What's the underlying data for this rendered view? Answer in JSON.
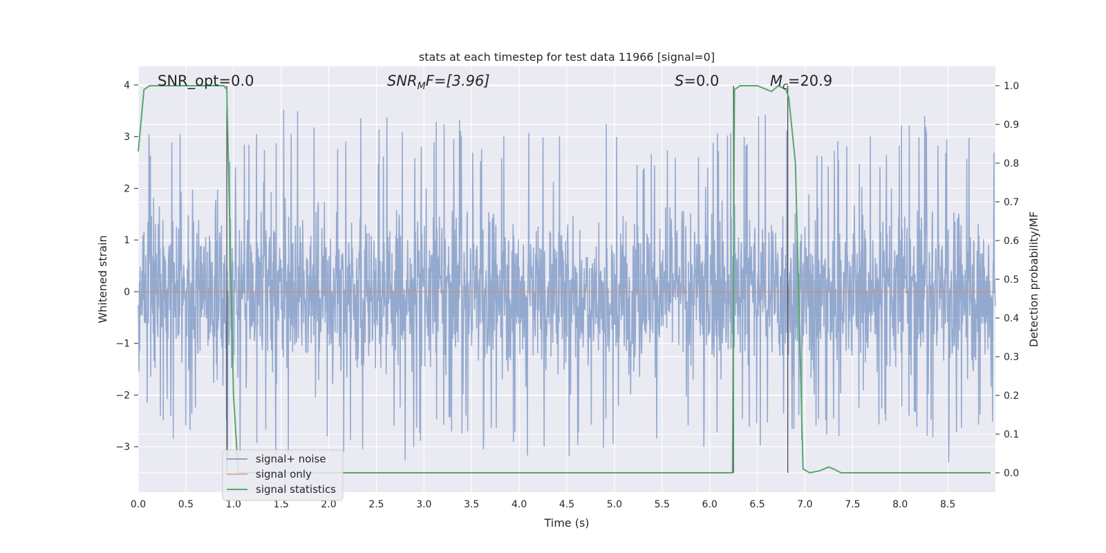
{
  "chart_data": {
    "type": "line",
    "title": "stats at each timestep for test data 11966 [signal=0]",
    "xlabel": "Time (s)",
    "ylabel": "Whitened strain",
    "ylabel_right": "Detection probability/MF",
    "xlim": [
      0.0,
      9.0
    ],
    "ylim": [
      -3.88,
      4.36
    ],
    "ylim_right": [
      -0.05,
      1.05
    ],
    "x_ticks": [
      "0.0",
      "0.5",
      "1.0",
      "1.5",
      "2.0",
      "2.5",
      "3.0",
      "3.5",
      "4.0",
      "4.5",
      "5.0",
      "5.5",
      "6.0",
      "6.5",
      "7.0",
      "7.5",
      "8.0",
      "8.5"
    ],
    "y_ticks": [
      "−3",
      "−2",
      "−1",
      "0",
      "1",
      "2",
      "3",
      "4"
    ],
    "y_ticks_right": [
      "0.0",
      "0.1",
      "0.2",
      "0.3",
      "0.4",
      "0.5",
      "0.6",
      "0.7",
      "0.8",
      "0.9",
      "1.0"
    ],
    "grid": true,
    "legend_position": "lower-left",
    "annotations": {
      "snr_opt": "SNR_opt=0.0",
      "snr_mf_base": "SNR",
      "snr_mf_sub": "M",
      "snr_mf_rest": "F=[3.96]",
      "s_italic": "S",
      "s_rest": "=0.0",
      "mc_base": "M",
      "mc_sub": "c",
      "mc_rest": "=20.9"
    },
    "vertical_lines_x": [
      0.93,
      6.25,
      6.82
    ],
    "series": [
      {
        "name": "signal+ noise",
        "color": "#4c72b0",
        "axis": "left",
        "description_only": false,
        "envelope": {
          "x": [
            0.0,
            0.5,
            1.0,
            1.5,
            2.0,
            2.5,
            3.0,
            3.5,
            4.0,
            4.5,
            5.0,
            5.5,
            6.0,
            6.5,
            7.0,
            7.5,
            8.0,
            8.5,
            9.0
          ],
          "upper": [
            3.2,
            3.3,
            3.1,
            3.8,
            3.3,
            3.4,
            3.4,
            3.3,
            3.2,
            3.3,
            3.3,
            3.0,
            3.2,
            3.7,
            3.2,
            3.0,
            3.3,
            3.5,
            2.8
          ],
          "lower": [
            -2.8,
            -2.9,
            -3.3,
            -3.4,
            -3.3,
            -3.5,
            -3.3,
            -3.1,
            -3.2,
            -3.3,
            -3.0,
            -3.1,
            -3.2,
            -3.0,
            -3.0,
            -2.8,
            -2.9,
            -3.4,
            -2.5
          ]
        }
      },
      {
        "name": "signal only",
        "color": "#dd8452",
        "axis": "left",
        "x": [
          0.0,
          9.0
        ],
        "y": [
          0.0,
          0.0
        ]
      },
      {
        "name": "signal statistics",
        "color": "#55a868",
        "axis": "right",
        "x": [
          0.0,
          0.06,
          0.12,
          0.5,
          0.9,
          0.93,
          1.0,
          1.05,
          1.1,
          2.0,
          6.0,
          6.24,
          6.26,
          6.32,
          6.4,
          6.5,
          6.6,
          6.65,
          6.72,
          6.8,
          6.83,
          6.9,
          6.98,
          7.05,
          7.15,
          7.25,
          7.3,
          7.38,
          8.0,
          8.95
        ],
        "y": [
          0.83,
          0.99,
          1.0,
          1.0,
          1.0,
          0.99,
          0.2,
          0.0,
          0.0,
          0.0,
          0.0,
          0.0,
          0.99,
          1.0,
          1.0,
          1.0,
          0.99,
          0.985,
          1.0,
          0.99,
          0.97,
          0.8,
          0.01,
          0.0,
          0.005,
          0.015,
          0.01,
          0.0,
          0.0,
          0.0
        ]
      }
    ]
  }
}
